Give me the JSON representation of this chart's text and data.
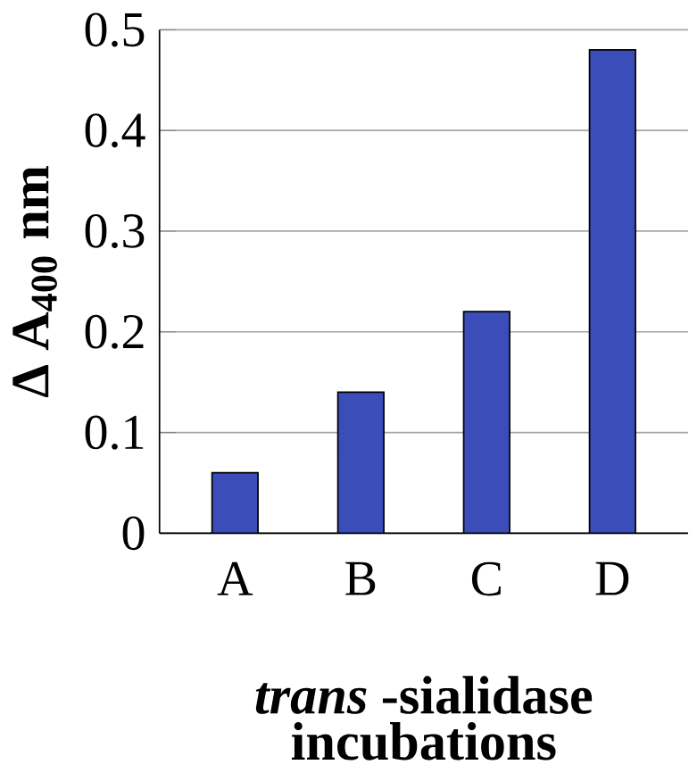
{
  "chart_data": {
    "type": "bar",
    "categories": [
      "A",
      "B",
      "C",
      "D"
    ],
    "values": [
      0.06,
      0.14,
      0.22,
      0.48
    ],
    "color": "#3b4db8",
    "ylim": [
      0,
      0.5
    ],
    "yticks": [
      0,
      0.1,
      0.2,
      0.3,
      0.4,
      0.5
    ],
    "grid": "y",
    "ylabel": "Δ A$_{400}$ nm",
    "xlabel": "*trans* -sialidase incubations"
  }
}
